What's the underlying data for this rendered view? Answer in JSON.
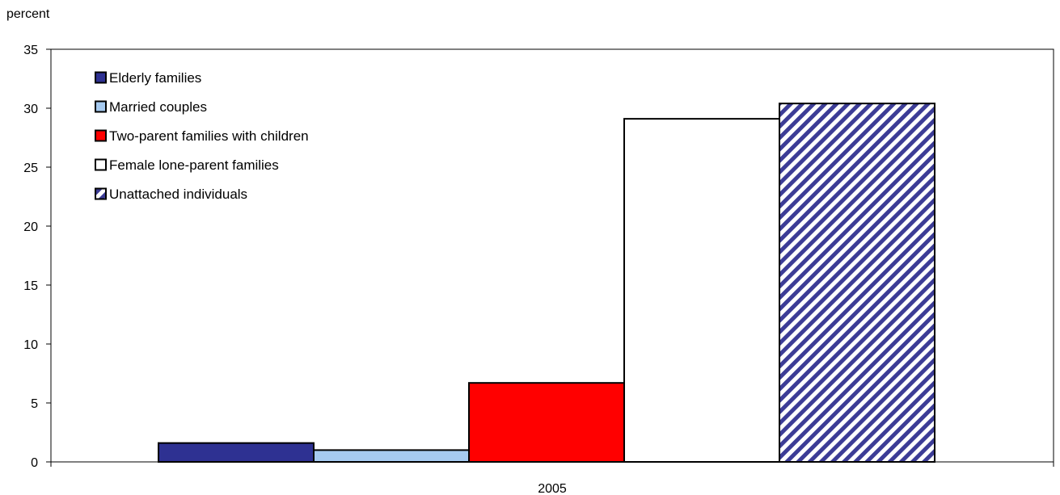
{
  "chart_data": {
    "type": "bar",
    "title": "",
    "ylabel": "percent",
    "xlabel": "",
    "categories": [
      "2005"
    ],
    "ylim": [
      0,
      35
    ],
    "yticks": [
      0,
      5,
      10,
      15,
      20,
      25,
      30,
      35
    ],
    "grid": false,
    "legend_position": "top-left",
    "series": [
      {
        "name": "Elderly families",
        "values": [
          1.6
        ],
        "color": "#2e3192",
        "pattern": "solid"
      },
      {
        "name": "Married couples",
        "values": [
          1.0
        ],
        "color": "#a6caf0",
        "pattern": "solid"
      },
      {
        "name": "Two-parent families with children",
        "values": [
          6.7
        ],
        "color": "#ff0000",
        "pattern": "solid"
      },
      {
        "name": "Female lone-parent families",
        "values": [
          29.1
        ],
        "color": "#ffffff",
        "pattern": "solid"
      },
      {
        "name": "Unattached individuals",
        "values": [
          30.4
        ],
        "color": "#3c3c96",
        "pattern": "diagonal-stripes"
      }
    ]
  }
}
